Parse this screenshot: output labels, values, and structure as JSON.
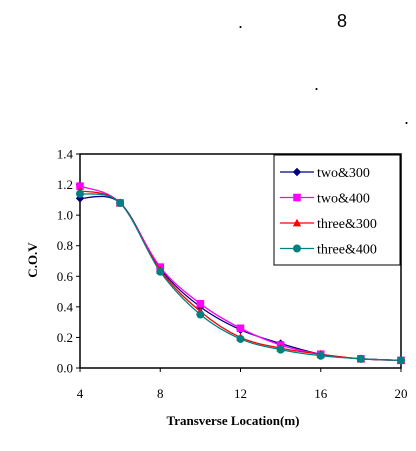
{
  "page": {
    "heading_number": "8",
    "heading_dot": ".",
    "line2_dot": ".",
    "line3_dot": "."
  },
  "chart_data": {
    "type": "line",
    "title": "",
    "xlabel": "Transverse Location(m)",
    "ylabel": "C.O.V",
    "xlim": [
      4,
      20
    ],
    "ylim": [
      0.0,
      1.4
    ],
    "xticks": [
      "4",
      "8",
      "12",
      "16",
      "20"
    ],
    "yticks": [
      "0.0",
      "0.2",
      "0.4",
      "0.6",
      "0.8",
      "1.0",
      "1.2",
      "1.4"
    ],
    "grid": false,
    "legend_position": "top-right",
    "x": [
      4,
      6,
      8,
      10,
      12,
      14,
      16,
      18,
      20
    ],
    "series": [
      {
        "name": "two&300",
        "color": "#000080",
        "marker": "diamond",
        "values": [
          1.11,
          1.08,
          0.65,
          0.4,
          0.25,
          0.16,
          0.09,
          0.06,
          0.05
        ]
      },
      {
        "name": "two&400",
        "color": "#ff00ff",
        "marker": "square",
        "values": [
          1.19,
          1.08,
          0.66,
          0.42,
          0.26,
          0.15,
          0.09,
          0.06,
          0.05
        ]
      },
      {
        "name": "three&300",
        "color": "#ff0000",
        "marker": "triangle",
        "values": [
          1.16,
          1.08,
          0.64,
          0.37,
          0.2,
          0.13,
          0.09,
          0.06,
          0.05
        ]
      },
      {
        "name": "three&400",
        "color": "#008080",
        "marker": "circle",
        "values": [
          1.14,
          1.08,
          0.63,
          0.35,
          0.19,
          0.12,
          0.08,
          0.06,
          0.05
        ]
      }
    ]
  }
}
